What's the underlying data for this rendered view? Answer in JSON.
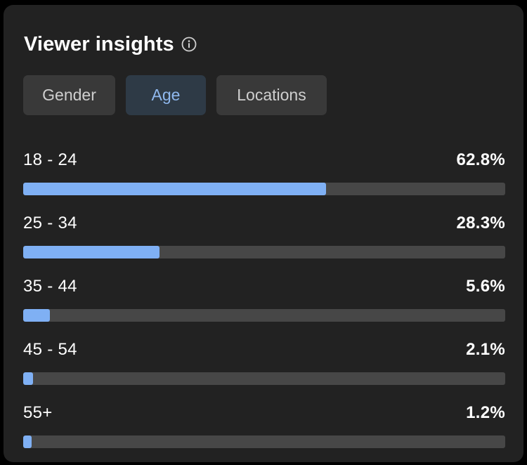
{
  "header": {
    "title": "Viewer insights",
    "info_icon": "info-icon"
  },
  "tabs": [
    {
      "label": "Gender",
      "active": false
    },
    {
      "label": "Age",
      "active": true
    },
    {
      "label": "Locations",
      "active": false
    }
  ],
  "age_groups": [
    {
      "label": "18 - 24",
      "value_text": "62.8%",
      "fraction": 0.628
    },
    {
      "label": "25 - 34",
      "value_text": "28.3%",
      "fraction": 0.283
    },
    {
      "label": "35 - 44",
      "value_text": "5.6%",
      "fraction": 0.056
    },
    {
      "label": "45 - 54",
      "value_text": "2.1%",
      "fraction": 0.021
    },
    {
      "label": "55+",
      "value_text": "1.2%",
      "fraction": 0.012
    }
  ],
  "colors": {
    "accent": "#7fb0f4",
    "active_tab_bg": "#2e3a46",
    "card_bg": "#222222"
  }
}
